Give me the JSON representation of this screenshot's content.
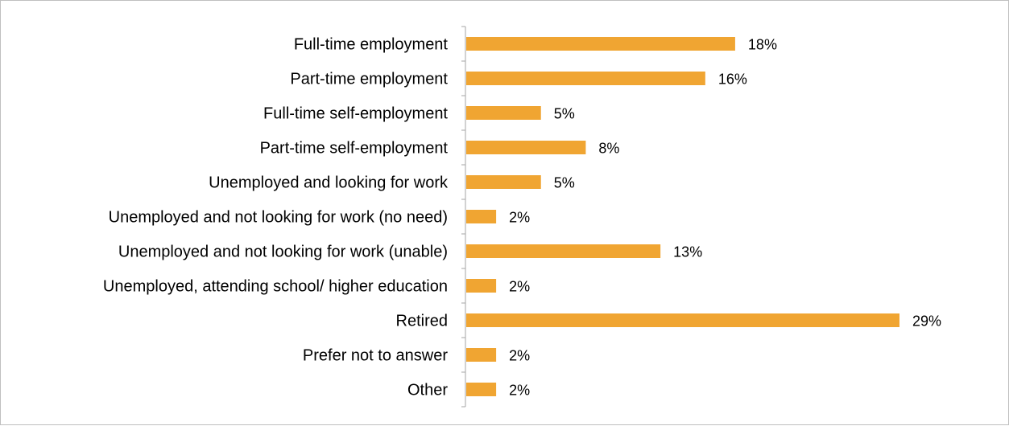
{
  "chart_data": {
    "type": "bar",
    "orientation": "horizontal",
    "categories": [
      "Full-time employment",
      "Part-time employment",
      "Full-time self-employment",
      "Part-time self-employment",
      "Unemployed and looking for work",
      "Unemployed and not looking for work (no need)",
      "Unemployed and not looking for work (unable)",
      "Unemployed, attending school/ higher education",
      "Retired",
      "Prefer not to answer",
      "Other"
    ],
    "values": [
      18,
      16,
      5,
      8,
      5,
      2,
      13,
      2,
      29,
      2,
      2
    ],
    "value_labels": [
      "18%",
      "16%",
      "5%",
      "8%",
      "5%",
      "2%",
      "13%",
      "2%",
      "29%",
      "2%",
      "2%"
    ],
    "unit": "%",
    "xlim": [
      0,
      30
    ],
    "bar_color": "#F0A532",
    "grid": false,
    "legend": "none"
  }
}
